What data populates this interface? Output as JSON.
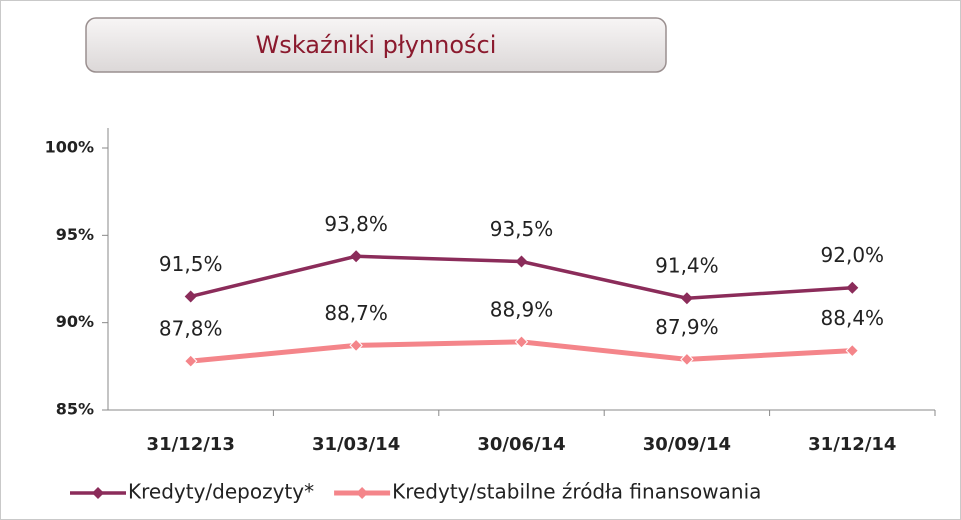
{
  "chart_data": {
    "type": "line",
    "title": "Wskaźniki płynności",
    "categories": [
      "31/12/13",
      "31/03/14",
      "30/06/14",
      "30/09/14",
      "31/12/14"
    ],
    "series": [
      {
        "name": "Kredyty/depozyty*",
        "color": "#8b2c5a",
        "values": [
          91.5,
          93.8,
          93.5,
          91.4,
          92.0
        ],
        "value_labels": [
          "91,5%",
          "93,8%",
          "93,5%",
          "91,4%",
          "92,0%"
        ]
      },
      {
        "name": "Kredyty/stabilne źródła finansowania",
        "color": "#f4858a",
        "values": [
          87.8,
          88.7,
          88.9,
          87.9,
          88.4
        ],
        "value_labels": [
          "87,8%",
          "88,7%",
          "88,9%",
          "87,9%",
          "88,4%"
        ]
      }
    ],
    "ylim": [
      85,
      100
    ],
    "yticks": [
      {
        "value": 85,
        "label": "85%"
      },
      {
        "value": 90,
        "label": "90%"
      },
      {
        "value": 95,
        "label": "95%"
      },
      {
        "value": 100,
        "label": "100%"
      }
    ],
    "legend": "bottom"
  }
}
